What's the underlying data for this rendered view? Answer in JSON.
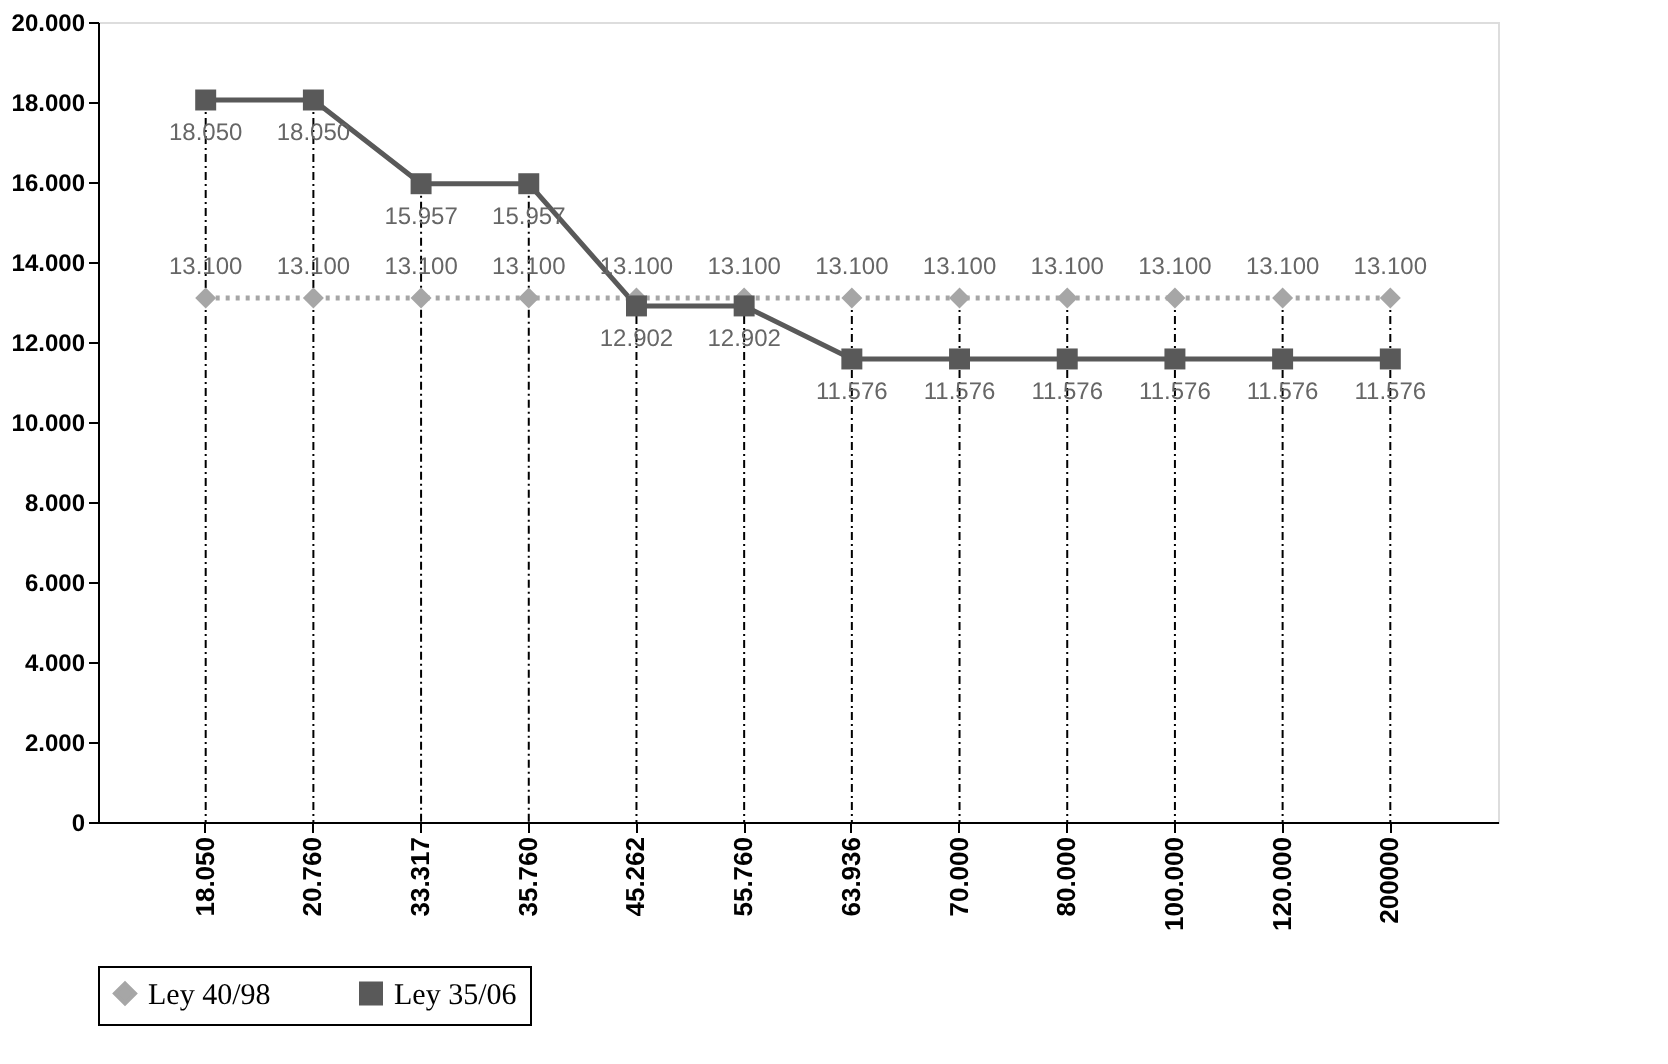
{
  "chart_data": {
    "type": "line",
    "categories": [
      "18.050",
      "20.760",
      "33.317",
      "35.760",
      "45.262",
      "55.760",
      "63.936",
      "70.000",
      "80.000",
      "100.000",
      "120.000",
      "200000"
    ],
    "series": [
      {
        "name": "Ley 40/98",
        "color": "#a6a6a6",
        "marker": "diamond",
        "line_style": "dotted",
        "values": [
          13100,
          13100,
          13100,
          13100,
          13100,
          13100,
          13100,
          13100,
          13100,
          13100,
          13100,
          13100
        ],
        "value_labels": [
          "13.100",
          "13.100",
          "13.100",
          "13.100",
          "13.100",
          "13.100",
          "13.100",
          "13.100",
          "13.100",
          "13.100",
          "13.100",
          "13.100"
        ]
      },
      {
        "name": "Ley 35/06",
        "color": "#595959",
        "marker": "square",
        "line_style": "solid",
        "values": [
          18050,
          18050,
          15957,
          15957,
          12902,
          12902,
          11576,
          11576,
          11576,
          11576,
          11576,
          11576
        ],
        "value_labels": [
          "18.050",
          "18.050",
          "15.957",
          "15.957",
          "12.902",
          "12.902",
          "11.576",
          "11.576",
          "11.576",
          "11.576",
          "11.576",
          "11.576"
        ]
      }
    ],
    "ylim": [
      0,
      20000
    ],
    "yticks": [
      {
        "value": 0,
        "label": "0"
      },
      {
        "value": 2000,
        "label": "2.000"
      },
      {
        "value": 4000,
        "label": "4.000"
      },
      {
        "value": 6000,
        "label": "6.000"
      },
      {
        "value": 8000,
        "label": "8.000"
      },
      {
        "value": 10000,
        "label": "10.000"
      },
      {
        "value": 12000,
        "label": "12.000"
      },
      {
        "value": 14000,
        "label": "14.000"
      },
      {
        "value": 16000,
        "label": "16.000"
      },
      {
        "value": 18000,
        "label": "18.000"
      },
      {
        "value": 20000,
        "label": "20.000"
      }
    ],
    "grid": "x",
    "legend": "bottom"
  }
}
